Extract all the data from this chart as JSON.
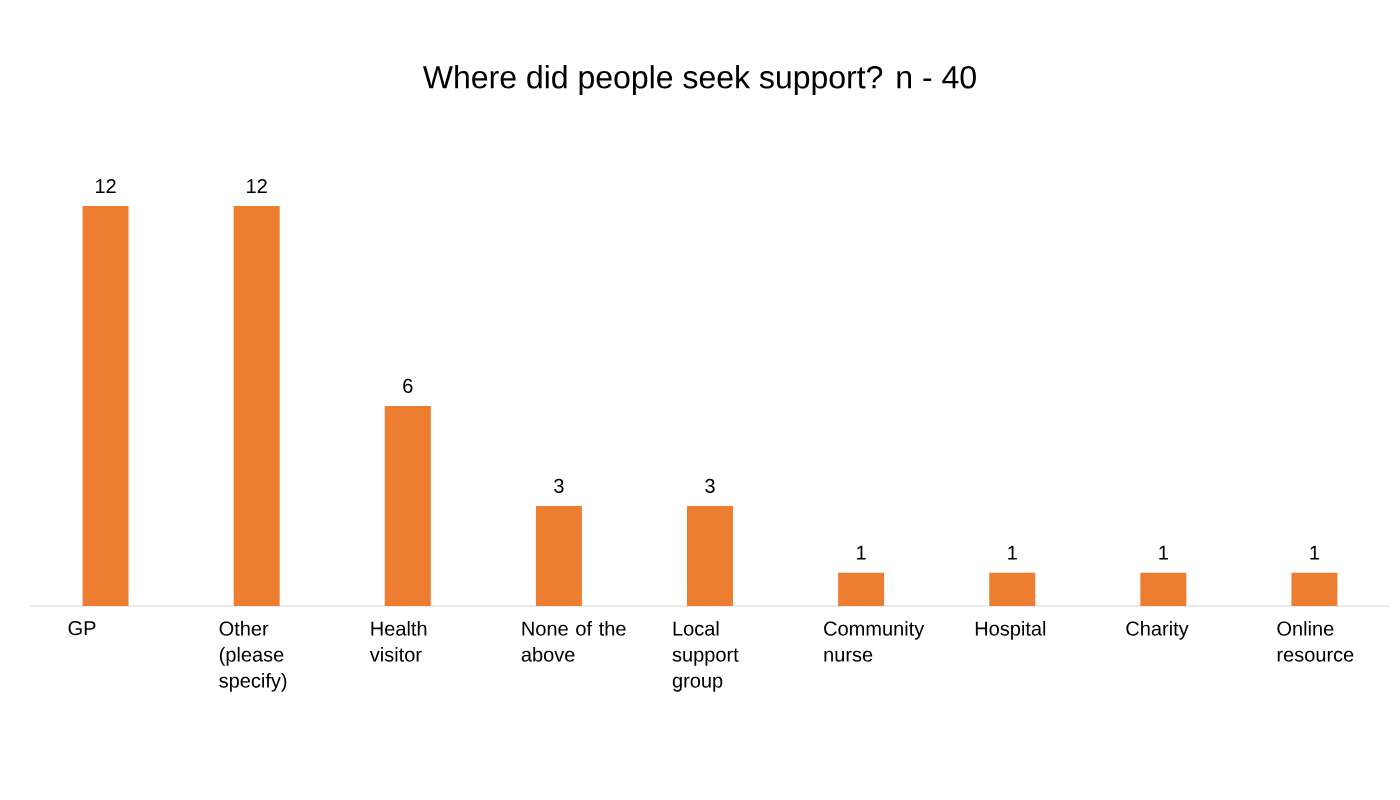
{
  "chart_data": {
    "type": "bar",
    "title": "Where did people seek support? n - 40",
    "categories": [
      "GP",
      "Other (please specify)",
      "Health visitor",
      "None of the above",
      "Local support group",
      "Community nurse",
      "Hospital",
      "Charity",
      "Online resource"
    ],
    "values": [
      12,
      12,
      6,
      3,
      3,
      1,
      1,
      1,
      1
    ],
    "color": "#ed7d31",
    "data_labels": true
  }
}
